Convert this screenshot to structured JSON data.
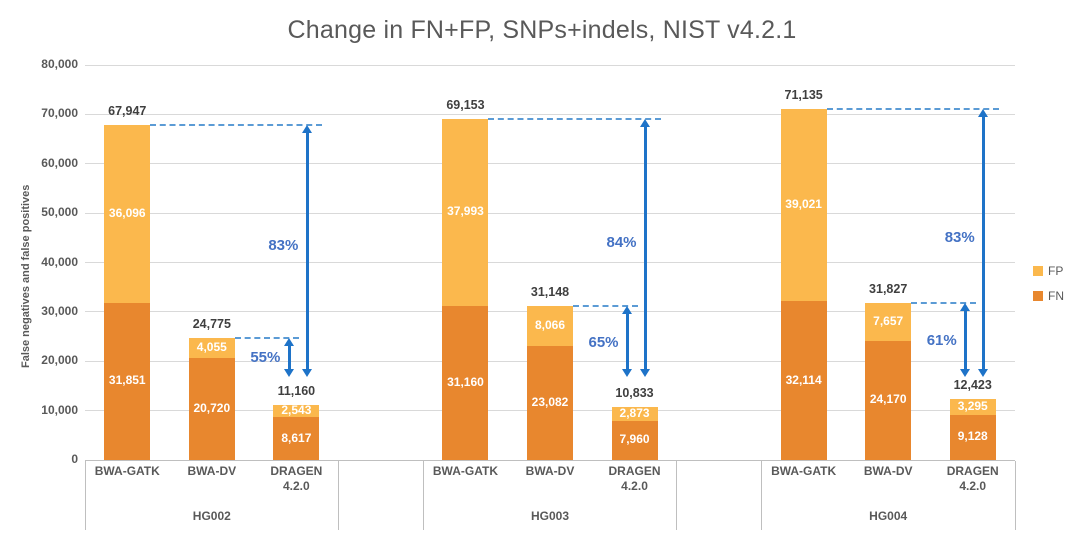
{
  "colors": {
    "fp": "#FBB84D",
    "fn": "#E8872E",
    "grid": "#D9D9D9",
    "axis": "#BFBFBF",
    "text_gray": "#595959",
    "total_label": "#3F3F3F",
    "dash_blue": "#5B9BD5",
    "arrow_blue": "#1E73C8",
    "pct_blue": "#4472C4",
    "white_label": "#FFFFFF"
  },
  "chart_data": {
    "type": "bar",
    "stacked": true,
    "title": "Change in FN+FP, SNPs+indels, NIST v4.2.1",
    "ylabel": "False negatives and false positives",
    "xlabel": "",
    "ylim": [
      0,
      80000
    ],
    "y_step": 10000,
    "y_tick_labels": [
      "0",
      "10,000",
      "20,000",
      "30,000",
      "40,000",
      "50,000",
      "60,000",
      "70,000",
      "80,000"
    ],
    "grid": true,
    "legend_position": "right",
    "legend": [
      {
        "label": "FP",
        "series": "fp"
      },
      {
        "label": "FN",
        "series": "fn"
      }
    ],
    "series_order_bottom_to_top": [
      "FN",
      "FP"
    ],
    "groups": [
      {
        "label": "HG002",
        "bars": [
          {
            "category_lines": [
              "BWA-GATK"
            ],
            "fn": 31851,
            "fp": 36096,
            "total": 67947,
            "fn_label": "31,851",
            "fp_label": "36,096",
            "total_label": "67,947"
          },
          {
            "category_lines": [
              "BWA-DV"
            ],
            "fn": 20720,
            "fp": 4055,
            "total": 24775,
            "fn_label": "20,720",
            "fp_label": "4,055",
            "total_label": "24,775"
          },
          {
            "category_lines": [
              "DRAGEN",
              "4.2.0"
            ],
            "fn": 8617,
            "fp": 2543,
            "total": 11160,
            "fn_label": "8,617",
            "fp_label": "2,543",
            "total_label": "11,160"
          }
        ],
        "reductions": [
          {
            "pct_label": "83%",
            "from_bar": 0
          },
          {
            "pct_label": "55%",
            "from_bar": 1
          }
        ]
      },
      {
        "label": "HG003",
        "bars": [
          {
            "category_lines": [
              "BWA-GATK"
            ],
            "fn": 31160,
            "fp": 37993,
            "total": 69153,
            "fn_label": "31,160",
            "fp_label": "37,993",
            "total_label": "69,153"
          },
          {
            "category_lines": [
              "BWA-DV"
            ],
            "fn": 23082,
            "fp": 8066,
            "total": 31148,
            "fn_label": "23,082",
            "fp_label": "8,066",
            "total_label": "31,148"
          },
          {
            "category_lines": [
              "DRAGEN",
              "4.2.0"
            ],
            "fn": 7960,
            "fp": 2873,
            "total": 10833,
            "fn_label": "7,960",
            "fp_label": "2,873",
            "total_label": "10,833"
          }
        ],
        "reductions": [
          {
            "pct_label": "84%",
            "from_bar": 0
          },
          {
            "pct_label": "65%",
            "from_bar": 1
          }
        ]
      },
      {
        "label": "HG004",
        "bars": [
          {
            "category_lines": [
              "BWA-GATK"
            ],
            "fn": 32114,
            "fp": 39021,
            "total": 71135,
            "fn_label": "32,114",
            "fp_label": "39,021",
            "total_label": "71,135"
          },
          {
            "category_lines": [
              "BWA-DV"
            ],
            "fn": 24170,
            "fp": 7657,
            "total": 31827,
            "fn_label": "24,170",
            "fp_label": "7,657",
            "total_label": "31,827"
          },
          {
            "category_lines": [
              "DRAGEN",
              "4.2.0"
            ],
            "fn": 9128,
            "fp": 3295,
            "total": 12423,
            "fn_label": "9,128",
            "fp_label": "3,295",
            "total_label": "12,423"
          }
        ],
        "reductions": [
          {
            "pct_label": "83%",
            "from_bar": 0
          },
          {
            "pct_label": "61%",
            "from_bar": 1
          }
        ]
      }
    ]
  }
}
